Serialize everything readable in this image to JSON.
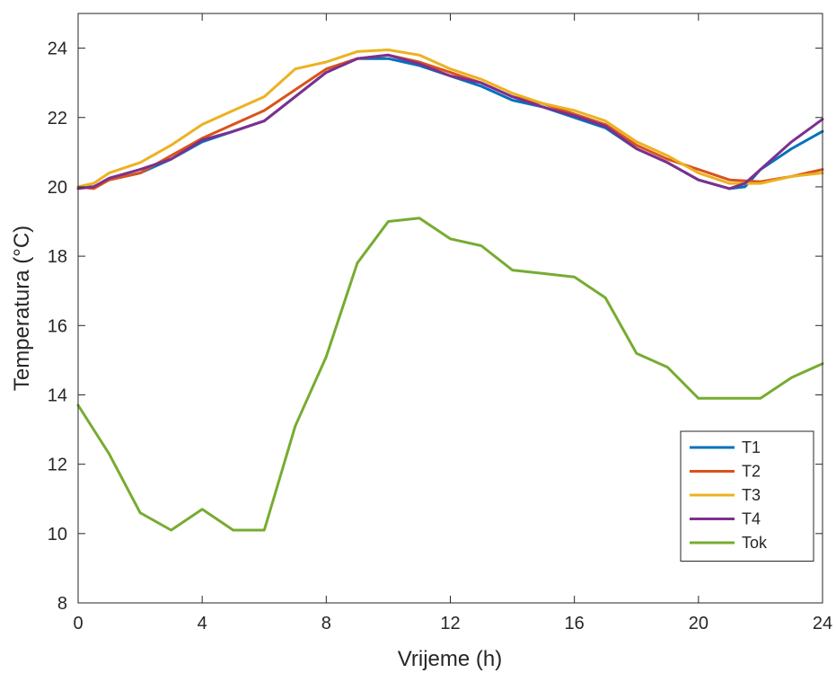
{
  "chart_data": {
    "type": "line",
    "title": "",
    "xlabel": "Vrijeme (h)",
    "ylabel": "Temperatura (°C)",
    "xlim": [
      0,
      24
    ],
    "ylim": [
      8,
      25
    ],
    "xticks": [
      0,
      4,
      8,
      12,
      16,
      20,
      24
    ],
    "yticks": [
      8,
      10,
      12,
      14,
      16,
      18,
      20,
      22,
      24
    ],
    "grid": false,
    "legend_position": "bottom-right",
    "series": [
      {
        "name": "T1",
        "color": "#0072BD",
        "x": [
          0,
          0.5,
          1,
          2,
          3,
          4,
          5,
          6,
          7,
          8,
          9,
          10,
          11,
          12,
          13,
          14,
          15,
          16,
          17,
          18,
          19,
          20,
          21,
          21.5,
          22,
          23,
          24
        ],
        "y": [
          20.0,
          20.0,
          20.2,
          20.4,
          20.8,
          21.3,
          21.6,
          21.9,
          22.6,
          23.3,
          23.7,
          23.7,
          23.5,
          23.2,
          22.9,
          22.5,
          22.3,
          22.0,
          21.7,
          21.1,
          20.7,
          20.2,
          19.95,
          20.0,
          20.5,
          21.1,
          21.6
        ]
      },
      {
        "name": "T2",
        "color": "#D95319",
        "x": [
          0,
          0.5,
          1,
          2,
          3,
          4,
          5,
          6,
          7,
          8,
          9,
          10,
          11,
          12,
          13,
          14,
          15,
          16,
          17,
          18,
          19,
          20,
          21,
          22,
          23,
          24
        ],
        "y": [
          20.0,
          19.95,
          20.2,
          20.4,
          20.9,
          21.4,
          21.8,
          22.2,
          22.8,
          23.4,
          23.7,
          23.8,
          23.6,
          23.3,
          23.0,
          22.6,
          22.4,
          22.1,
          21.8,
          21.2,
          20.8,
          20.5,
          20.2,
          20.15,
          20.3,
          20.5
        ]
      },
      {
        "name": "T3",
        "color": "#EDB120",
        "x": [
          0,
          0.5,
          1,
          2,
          3,
          4,
          5,
          6,
          7,
          8,
          9,
          10,
          11,
          12,
          13,
          14,
          15,
          16,
          17,
          18,
          19,
          20,
          21,
          22,
          23,
          24
        ],
        "y": [
          20.0,
          20.1,
          20.4,
          20.7,
          21.2,
          21.8,
          22.2,
          22.6,
          23.4,
          23.6,
          23.9,
          23.95,
          23.8,
          23.4,
          23.1,
          22.7,
          22.4,
          22.2,
          21.9,
          21.3,
          20.9,
          20.4,
          20.1,
          20.1,
          20.3,
          20.4
        ]
      },
      {
        "name": "T4",
        "color": "#7E2F8E",
        "x": [
          0,
          0.5,
          1,
          2,
          3,
          4,
          5,
          6,
          7,
          8,
          9,
          10,
          11,
          12,
          13,
          14,
          15,
          16,
          17,
          18,
          19,
          20,
          21,
          21.5,
          22,
          23,
          24
        ],
        "y": [
          19.95,
          20.0,
          20.25,
          20.5,
          20.8,
          21.35,
          21.6,
          21.9,
          22.6,
          23.3,
          23.7,
          23.8,
          23.55,
          23.2,
          23.0,
          22.6,
          22.3,
          22.05,
          21.75,
          21.1,
          20.7,
          20.2,
          19.95,
          20.1,
          20.5,
          21.3,
          21.95
        ]
      },
      {
        "name": "Tok",
        "color": "#77AC30",
        "x": [
          0,
          1,
          2,
          3,
          4,
          5,
          6,
          7,
          8,
          9,
          10,
          11,
          12,
          13,
          14,
          15,
          16,
          17,
          18,
          19,
          20,
          21,
          22,
          23,
          24
        ],
        "y": [
          13.7,
          12.3,
          10.6,
          10.1,
          10.7,
          10.1,
          10.1,
          13.1,
          15.1,
          17.8,
          19.0,
          19.1,
          18.5,
          18.3,
          17.6,
          17.5,
          17.4,
          16.8,
          15.2,
          14.8,
          13.9,
          13.9,
          13.9,
          14.5,
          14.9
        ]
      }
    ]
  }
}
